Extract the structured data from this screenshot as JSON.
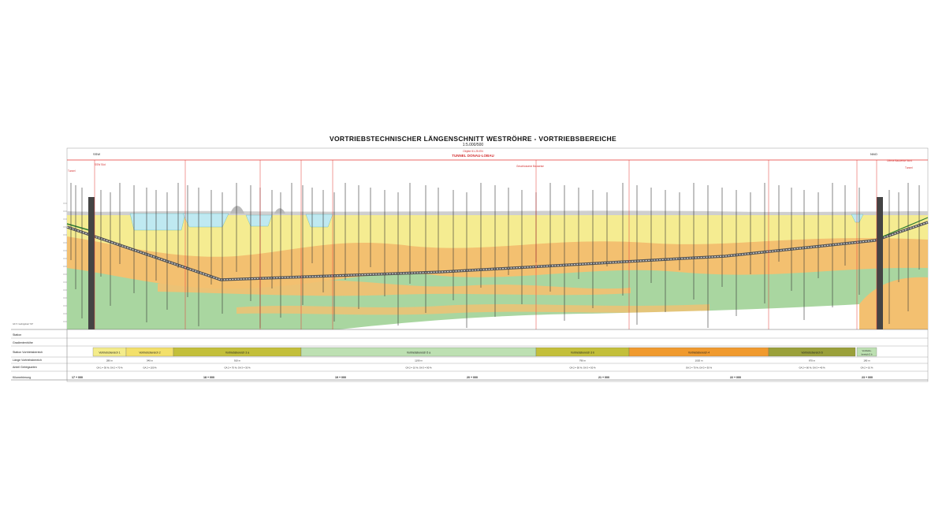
{
  "title": "VORTRIEBSTECHNISCHER LÄNGENSCHNITT WESTRÖHRE - VORTRIEBSBEREICHE",
  "scale": "1:5.000/500",
  "tunnel": {
    "object": "Objekt 51.25.EN",
    "name": "TUNNEL DONAU-LOBAU",
    "left_direction": "SSW",
    "right_direction": "NNO",
    "left_start": "SSW Süd",
    "right_end": "Offene Bauweise Nord",
    "left_label": "Tunnel",
    "right_label": "Tunnel",
    "geschlossene": "Geschlossene Bauweise"
  },
  "row_labels": [
    "Station",
    "Gradientenhöhe",
    "Station Vortriebsbereich",
    "Länge Vortriebsbereich",
    "Anteil Gebirgsarten",
    "Kilometrierung"
  ],
  "note": "GK 5: Gebirgsbart \"Mi\"",
  "zones": [
    {
      "label": "Vortriebsbereich 1",
      "length": "280 m",
      "shares": "GA 1 = 30 %; GA 2 = 70 %",
      "color": "#f4ec8a",
      "start": 0.0,
      "end": 0.07
    },
    {
      "label": "Vortriebsbereich 2",
      "length": "340 m",
      "shares": "GA 2 = 100 %",
      "color": "#f3e06a",
      "start": 0.07,
      "end": 0.155
    },
    {
      "label": "Vortriebsbereich 3 a",
      "length": "910 m",
      "shares": "GA 2 = 70 %; GA 3 = 30 %",
      "color": "#c3bf3a",
      "start": 0.155,
      "end": 0.378
    },
    {
      "label": "Vortriebsbereich 5 a",
      "length": "1190 m",
      "shares": "GA 2 = 10 %; GA 3 = 90 %",
      "color": "#bde0b2",
      "start": 0.378,
      "end": 0.673
    },
    {
      "label": "Vortriebsbereich 3 b",
      "length": "790 m",
      "shares": "GA 2 = 50 %; GA 3 = 50 %",
      "color": "#c3bf3a",
      "start": 0.673,
      "end": 0.792
    },
    {
      "label": "Vortriebsbereich 4",
      "length": "1020 m",
      "shares": "GA 2 = 70 %; GA 3 = 30 %",
      "color": "#f09a2e",
      "start": 0.792,
      "end": 0.97
    },
    {
      "label": "Vortriebsbereich 6",
      "length": "670 m",
      "shares": "GA 2 = 60 %; GA 3 = 40 %",
      "color": "#9aa03a",
      "start": 0.97,
      "end": 1.0
    }
  ],
  "zone_last": {
    "label": "Vortriebs- bereich 5 b",
    "length": "190 m",
    "shares": "GA 2 = 10 %",
    "color": "#bde0b2"
  },
  "km_labels": [
    "17 + 000",
    "18 + 000",
    "19 + 000",
    "20 + 000",
    "21 + 000",
    "22 + 000",
    "23 + 000"
  ],
  "colors": {
    "yellow": "#f5ec91",
    "orange": "#f3c070",
    "green": "#a9d6a0",
    "water": "#bfe9f1",
    "tunnel": "#555555",
    "red": "#e53935"
  }
}
